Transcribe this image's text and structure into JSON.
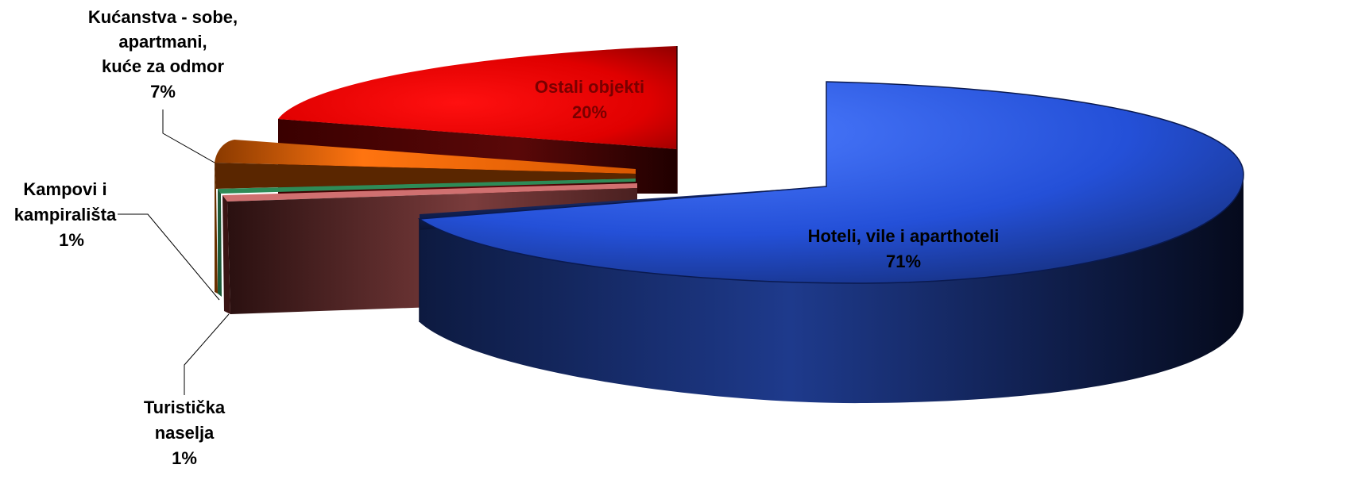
{
  "chart_data": {
    "type": "pie",
    "style": "3d-exploded",
    "title": "",
    "legend": "none",
    "slices": [
      {
        "name": "Hoteli, vile i aparthoteli",
        "value": 71,
        "label": "71%",
        "color": "#2e5cf5",
        "label_color": "#000000"
      },
      {
        "name": "Turistička naselja",
        "value": 1,
        "label": "1%",
        "color": "#c86a6a",
        "label_color": "#000000"
      },
      {
        "name": "Kampovi i kampirališta",
        "value": 1,
        "label": "1%",
        "color": "#2e8b57",
        "label_color": "#000000"
      },
      {
        "name": "Kućanstva - sobe, apartmani, kuće za odmor",
        "value": 7,
        "label": "7%",
        "color": "#f07010",
        "label_color": "#000000"
      },
      {
        "name": "Ostali objekti",
        "value": 20,
        "label": "20%",
        "color": "#ee0000",
        "label_color": "#7a0000"
      }
    ]
  }
}
